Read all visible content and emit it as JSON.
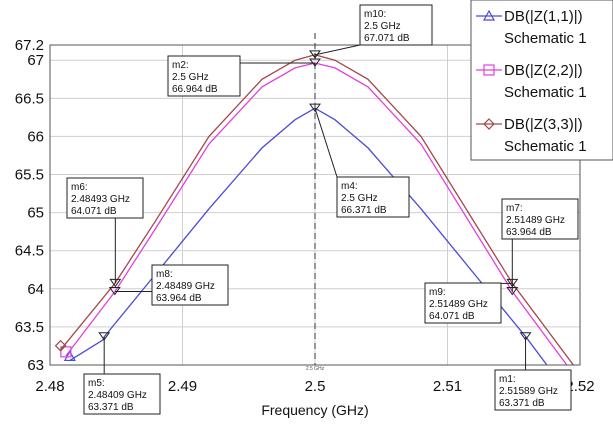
{
  "chart_data": {
    "type": "line",
    "title": "",
    "xlabel": "Frequency (GHz)",
    "ylabel": "",
    "xlim": [
      2.48,
      2.52
    ],
    "ylim": [
      63,
      67.2
    ],
    "x_ticks": [
      "2.48",
      "2.49",
      "2.5",
      "2.51",
      "2.52"
    ],
    "y_ticks": [
      "63",
      "63.5",
      "64",
      "64.5",
      "65",
      "65.5",
      "66",
      "66.5",
      "67",
      "67.2"
    ],
    "grid": true,
    "legend_position": "top-right",
    "center_marker_label": "2.5 GHz",
    "series": [
      {
        "name": "DB(|Z(1,1)|)",
        "subname": "Schematic 1",
        "color": "#4a4ad8",
        "marker": "triangle",
        "x": [
          2.4815,
          2.484,
          2.4841,
          2.488,
          2.492,
          2.496,
          2.4985,
          2.5,
          2.5015,
          2.504,
          2.508,
          2.512,
          2.5159,
          2.5175
        ],
        "y": [
          63.06,
          63.33,
          63.371,
          64.2,
          65.05,
          65.85,
          66.22,
          66.371,
          66.22,
          65.85,
          65.05,
          64.2,
          63.371,
          63.0
        ]
      },
      {
        "name": "DB(|Z(2,2)|)",
        "subname": "Schematic 1",
        "color": "#e040e0",
        "marker": "square",
        "x": [
          2.4812,
          2.4849,
          2.488,
          2.492,
          2.496,
          2.4985,
          2.5,
          2.5015,
          2.504,
          2.508,
          2.5149,
          2.519
        ],
        "y": [
          63.12,
          63.964,
          64.8,
          65.9,
          66.65,
          66.9,
          66.964,
          66.9,
          66.65,
          65.9,
          63.964,
          63.0
        ]
      },
      {
        "name": "DB(|Z(3,3)|)",
        "subname": "Schematic 1",
        "color": "#a04848",
        "marker": "diamond",
        "x": [
          2.4808,
          2.4849,
          2.488,
          2.492,
          2.496,
          2.4985,
          2.5,
          2.5015,
          2.504,
          2.508,
          2.5149,
          2.5195
        ],
        "y": [
          63.2,
          64.071,
          64.9,
          66.0,
          66.75,
          67.0,
          67.071,
          67.0,
          66.75,
          66.0,
          64.071,
          63.0
        ]
      }
    ],
    "markers": [
      {
        "name": "m10",
        "freq": "2.5 GHz",
        "value": "67.071 dB",
        "x": 2.5,
        "y": 67.071
      },
      {
        "name": "m2",
        "freq": "2.5 GHz",
        "value": "66.964 dB",
        "x": 2.5,
        "y": 66.964
      },
      {
        "name": "m4",
        "freq": "2.5 GHz",
        "value": "66.371 dB",
        "x": 2.5,
        "y": 66.371
      },
      {
        "name": "m6",
        "freq": "2.48493 GHz",
        "value": "64.071 dB",
        "x": 2.48493,
        "y": 64.071
      },
      {
        "name": "m8",
        "freq": "2.48489 GHz",
        "value": "63.964 dB",
        "x": 2.48489,
        "y": 63.964
      },
      {
        "name": "m7",
        "freq": "2.51489 GHz",
        "value": "63.964 dB",
        "x": 2.51489,
        "y": 63.964
      },
      {
        "name": "m9",
        "freq": "2.51489 GHz",
        "value": "64.071 dB",
        "x": 2.51489,
        "y": 64.071
      },
      {
        "name": "m5",
        "freq": "2.48409 GHz",
        "value": "63.371 dB",
        "x": 2.48409,
        "y": 63.371
      },
      {
        "name": "m1",
        "freq": "2.51589 GHz",
        "value": "63.371 dB",
        "x": 2.51589,
        "y": 63.371
      }
    ]
  }
}
